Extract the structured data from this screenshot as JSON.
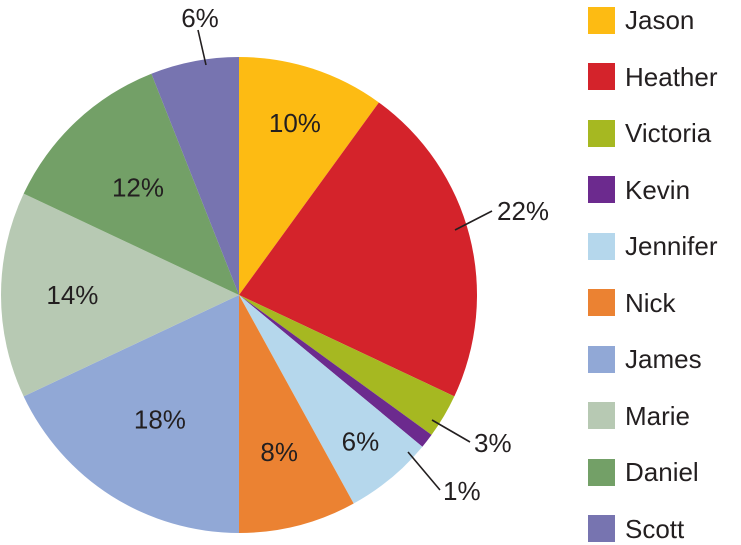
{
  "chart_data": {
    "type": "pie",
    "title": "",
    "legend_position": "right",
    "start_angle_deg": 0,
    "direction": "clockwise",
    "slices": [
      {
        "name": "Jason",
        "value": 10,
        "label": "10%",
        "color": "#fdbb13",
        "label_placement": "inside"
      },
      {
        "name": "Heather",
        "value": 22,
        "label": "22%",
        "color": "#d4232b",
        "label_placement": "outside"
      },
      {
        "name": "Victoria",
        "value": 3,
        "label": "3%",
        "color": "#a6b821",
        "label_placement": "outside"
      },
      {
        "name": "Kevin",
        "value": 1,
        "label": "1%",
        "color": "#6c2a8e",
        "label_placement": "outside"
      },
      {
        "name": "Jennifer",
        "value": 6,
        "label": "6%",
        "color": "#b5d7ec",
        "label_placement": "inside"
      },
      {
        "name": "Nick",
        "value": 8,
        "label": "8%",
        "color": "#eb8232",
        "label_placement": "inside"
      },
      {
        "name": "James",
        "value": 18,
        "label": "18%",
        "color": "#91a8d6",
        "label_placement": "inside"
      },
      {
        "name": "Marie",
        "value": 14,
        "label": "14%",
        "color": "#b7c9b3",
        "label_placement": "inside"
      },
      {
        "name": "Daniel",
        "value": 12,
        "label": "12%",
        "color": "#73a067",
        "label_placement": "inside"
      },
      {
        "name": "Scott",
        "value": 6,
        "label": "6%",
        "color": "#7774b0",
        "label_placement": "outside"
      }
    ]
  }
}
